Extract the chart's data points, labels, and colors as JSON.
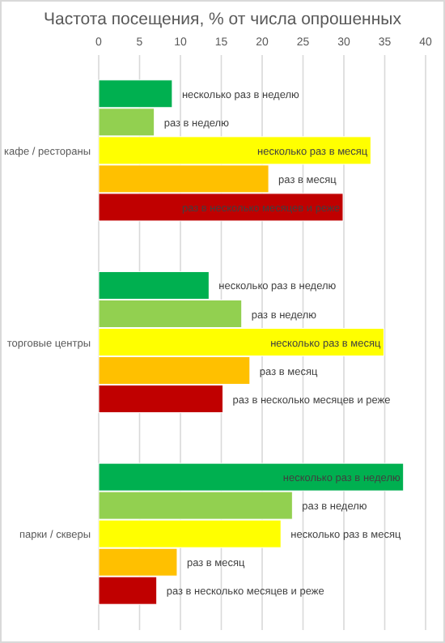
{
  "chart_data": {
    "type": "bar",
    "orientation": "horizontal",
    "title": "Частота посещения, % от числа опрошенных",
    "categories": [
      "кафе / рестораны",
      "торговые центры",
      "парки / скверы"
    ],
    "series": [
      {
        "name": "несколько раз в неделю",
        "color": "#00b050",
        "values": [
          9.0,
          13.5,
          37.3
        ]
      },
      {
        "name": "раз в неделю",
        "color": "#92d050",
        "values": [
          6.8,
          17.5,
          23.7
        ]
      },
      {
        "name": "несколько раз в месяц",
        "color": "#ffff00",
        "values": [
          33.3,
          34.9,
          22.3
        ]
      },
      {
        "name": "раз в месяц",
        "color": "#ffc000",
        "values": [
          20.8,
          18.5,
          9.6
        ]
      },
      {
        "name": "раз в несколько месяцев и реже",
        "color": "#c00000",
        "values": [
          29.9,
          15.2,
          7.1
        ]
      }
    ],
    "xlim": [
      0,
      40
    ],
    "xticks": [
      0,
      5,
      10,
      15,
      20,
      25,
      30,
      35,
      40
    ],
    "grid": "x",
    "legend": false
  }
}
